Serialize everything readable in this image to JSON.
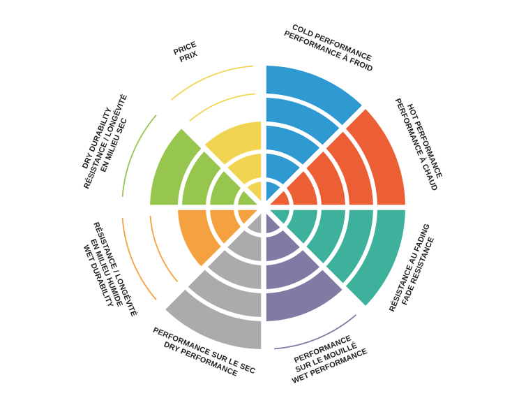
{
  "page": {
    "background_color": "#ffffff",
    "label_text_color": "#231f20"
  },
  "chart_data": {
    "type": "bar",
    "coordinate_system": "polar",
    "title": "",
    "legend_position": "none",
    "grid": "concentric-rings-with-radial-dividers",
    "scale": {
      "min": 0,
      "max": 5,
      "rings": 5
    },
    "sectors": [
      {
        "id": "cold-performance",
        "label_lines": [
          "COLD PERFORMANCE",
          "PERFORMANCE À FROID"
        ],
        "value": 5,
        "color": "#2f9ad2"
      },
      {
        "id": "hot-performance",
        "label_lines": [
          "HOT PERFORMANCE",
          "PERFORMANCE À CHAUD"
        ],
        "value": 5,
        "color": "#ec5f34"
      },
      {
        "id": "fade-resistance",
        "label_lines": [
          "RÉSISTANCE AU FADING",
          "FADE RESISTANCE"
        ],
        "value": 5,
        "color": "#3eb19c"
      },
      {
        "id": "wet-performance",
        "label_lines": [
          "PERFORMANCE",
          "SUR LE MOUILLÉ",
          "WET PERFORMANCE"
        ],
        "value": 4,
        "color": "#807aa4"
      },
      {
        "id": "dry-performance",
        "label_lines": [
          "PERFORMANCE SUR LE SEC",
          "DRY PERFORMANCE"
        ],
        "value": 5,
        "color": "#ababab"
      },
      {
        "id": "wet-durability",
        "label_lines": [
          "RÉSISTANCE / LONGÉVITÉ",
          "EN MILIEU HUMIDE",
          "WET DURABILITY"
        ],
        "value": 3,
        "color": "#f6a140"
      },
      {
        "id": "dry-durability",
        "label_lines": [
          "DRY DURABILITY",
          "RÉSISTANCE / LONGÉVITÉ",
          "EN MILIEU SEC"
        ],
        "value": 4,
        "color": "#97c64e"
      },
      {
        "id": "price",
        "label_lines": [
          "PRICE",
          "PRIX"
        ],
        "value": 3,
        "color": "#f1d552"
      }
    ]
  }
}
